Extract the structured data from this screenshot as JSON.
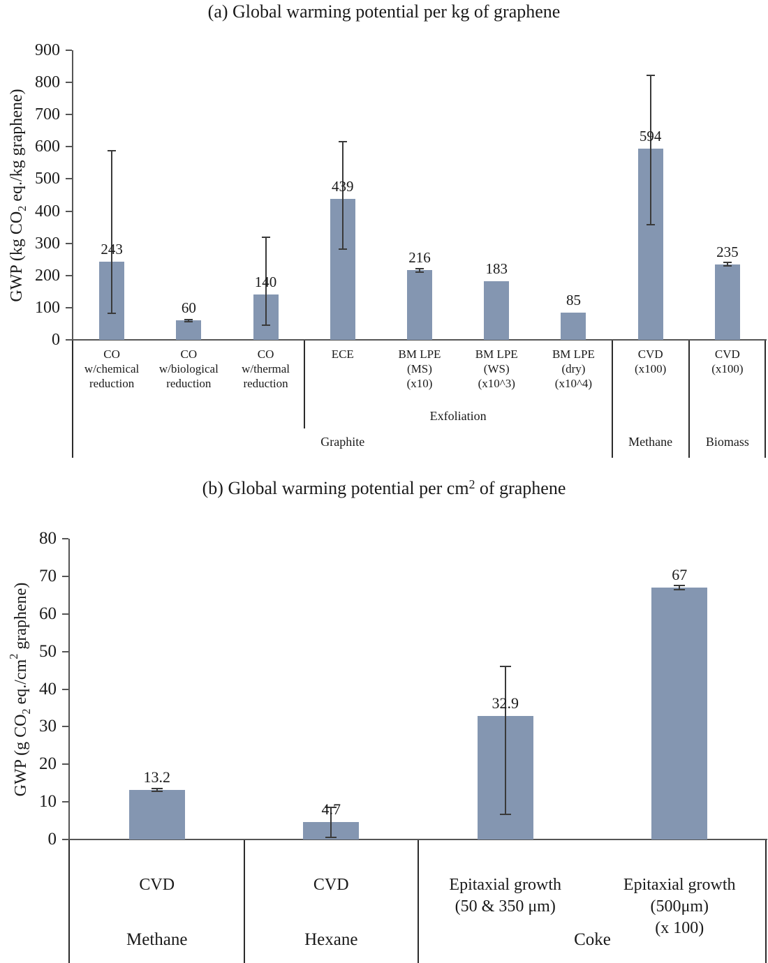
{
  "colors": {
    "bar": "#8496b1",
    "error_bar": "#3a3a3a",
    "axis": "#555555",
    "table_border": "#2b2b2b",
    "text": "#1a1a1a",
    "background": "#ffffff"
  },
  "chart_data": [
    {
      "id": "a",
      "type": "bar",
      "title_tokens": [
        {
          "t": "(a) Global warming potential per kg of graphene"
        }
      ],
      "ylabel_tokens": [
        {
          "t": "GWP (kg CO"
        },
        {
          "sub": "2"
        },
        {
          "t": " eq./kg graphene)"
        }
      ],
      "ylim": [
        0,
        900
      ],
      "yticks": [
        0,
        100,
        200,
        300,
        400,
        500,
        600,
        700,
        800,
        900
      ],
      "ytick_labels": [
        "0",
        "100",
        "200",
        "300",
        "400",
        "500",
        "600",
        "700",
        "800",
        "900"
      ],
      "grid": false,
      "legend": null,
      "categories": [
        [
          "CO",
          "w/chemical",
          "reduction"
        ],
        [
          "CO",
          "w/biological",
          "reduction"
        ],
        [
          "CO",
          "w/thermal",
          "reduction"
        ],
        [
          "ECE"
        ],
        [
          "BM LPE",
          "(MS)",
          "(x10)"
        ],
        [
          "BM LPE",
          "(WS)",
          "(x10^3)"
        ],
        [
          "BM LPE",
          "(dry)",
          "(x10^4)"
        ],
        [
          "CVD",
          "(x100)"
        ],
        [
          "CVD",
          "(x100)"
        ]
      ],
      "values": [
        243,
        60,
        140,
        439,
        216,
        183,
        85,
        594,
        235
      ],
      "value_labels": [
        "243",
        "60",
        "140",
        "439",
        "216",
        "183",
        "85",
        "594",
        "235"
      ],
      "errors": [
        [
          82,
          588
        ],
        [
          57,
          63
        ],
        [
          45,
          318
        ],
        [
          283,
          616
        ],
        [
          210,
          222
        ],
        null,
        null,
        [
          358,
          822
        ],
        [
          229,
          241
        ]
      ],
      "group_rows": [
        {
          "row": 2,
          "groups": [
            {
              "label": "Exfoliation",
              "span": [
                3,
                6
              ]
            }
          ]
        },
        {
          "row": 3,
          "groups": [
            {
              "label": "Graphite",
              "span": [
                0,
                6
              ]
            },
            {
              "label": "Methane",
              "span": [
                7,
                7
              ]
            },
            {
              "label": "Biomass",
              "span": [
                8,
                8
              ]
            }
          ]
        }
      ]
    },
    {
      "id": "b",
      "type": "bar",
      "title_tokens": [
        {
          "t": "(b) Global warming potential per cm"
        },
        {
          "sup": "2"
        },
        {
          "t": " of graphene"
        }
      ],
      "ylabel_tokens": [
        {
          "t": "GWP (g CO"
        },
        {
          "sub": "2"
        },
        {
          "t": " eq./cm"
        },
        {
          "sup": "2"
        },
        {
          "t": " graphene)"
        }
      ],
      "ylim": [
        0,
        80
      ],
      "yticks": [
        0,
        10,
        20,
        30,
        40,
        50,
        60,
        70,
        80
      ],
      "ytick_labels": [
        "0",
        "10",
        "20",
        "30",
        "40",
        "50",
        "60",
        "70",
        "80"
      ],
      "grid": false,
      "legend": null,
      "categories": [
        [
          "CVD"
        ],
        [
          "CVD"
        ],
        [
          "Epitaxial growth",
          "(50 & 350 μm)"
        ],
        [
          "Epitaxial growth",
          "(500μm)",
          "(x 100)"
        ]
      ],
      "values": [
        13.2,
        4.7,
        32.9,
        67
      ],
      "value_labels": [
        "13.2",
        "4.7",
        "32.9",
        "67"
      ],
      "errors": [
        [
          12.8,
          13.6
        ],
        [
          0.6,
          8.5
        ],
        [
          6.7,
          46
        ],
        [
          66.5,
          67.5
        ]
      ],
      "group_rows": [
        {
          "row": 2,
          "groups": [
            {
              "label": "Methane",
              "span": [
                0,
                0
              ]
            },
            {
              "label": "Hexane",
              "span": [
                1,
                1
              ]
            },
            {
              "label": "Coke",
              "span": [
                2,
                3
              ]
            }
          ]
        }
      ]
    }
  ]
}
